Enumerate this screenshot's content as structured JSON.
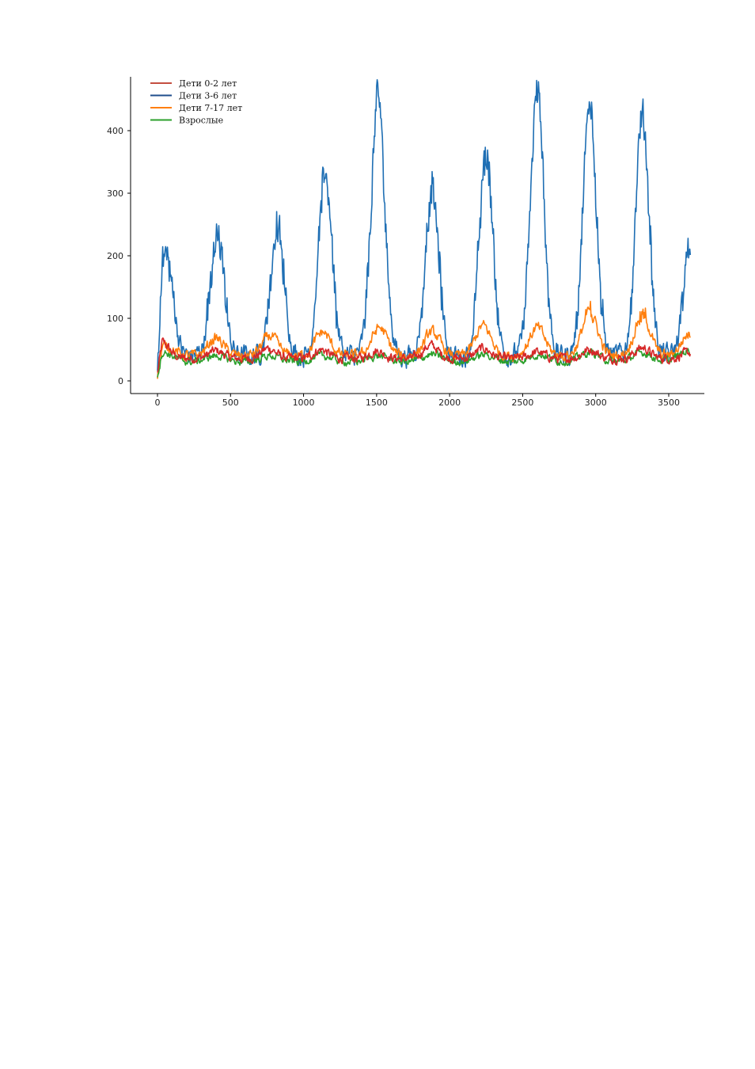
{
  "chart_data": {
    "type": "line",
    "title": "",
    "xlabel": "",
    "ylabel": "",
    "xlim": [
      -180,
      3760
    ],
    "ylim": [
      -20,
      485
    ],
    "xticks": [
      0,
      500,
      1000,
      1500,
      2000,
      2500,
      3000,
      3500
    ],
    "yticks": [
      0,
      100,
      200,
      300,
      400
    ],
    "grid": false,
    "legend_position": "top-left",
    "series": [
      {
        "name": "Дети 0-2 лет",
        "color": "#d62728",
        "legend_color": "#c44e40",
        "peaks": [
          [
            30,
            62
          ],
          [
            400,
            48
          ],
          [
            760,
            52
          ],
          [
            1120,
            50
          ],
          [
            1500,
            48
          ],
          [
            1870,
            57
          ],
          [
            2230,
            52
          ],
          [
            2600,
            46
          ],
          [
            2960,
            50
          ],
          [
            3320,
            53
          ],
          [
            3640,
            45
          ]
        ],
        "baseline": 36,
        "width": 70,
        "noise": 6
      },
      {
        "name": "Дети 3-6 лет",
        "color": "#1f6fb4",
        "legend_color": "#1f4e8c",
        "peaks": [
          [
            60,
            205
          ],
          [
            410,
            235
          ],
          [
            820,
            240
          ],
          [
            1150,
            330
          ],
          [
            1510,
            450
          ],
          [
            1880,
            300
          ],
          [
            2250,
            360
          ],
          [
            2600,
            460
          ],
          [
            2960,
            440
          ],
          [
            3320,
            415
          ],
          [
            3650,
            220
          ]
        ],
        "baseline": 40,
        "width": 65,
        "noise": 14
      },
      {
        "name": "Дети 7-17 лет",
        "color": "#ff7f0e",
        "legend_color": "#ff7f0e",
        "peaks": [
          [
            60,
            55
          ],
          [
            400,
            68
          ],
          [
            770,
            72
          ],
          [
            1130,
            78
          ],
          [
            1520,
            85
          ],
          [
            1880,
            78
          ],
          [
            2230,
            88
          ],
          [
            2600,
            85
          ],
          [
            2960,
            110
          ],
          [
            3320,
            105
          ],
          [
            3640,
            75
          ]
        ],
        "baseline": 40,
        "width": 75,
        "noise": 7
      },
      {
        "name": "Взрослые",
        "color": "#2ca02c",
        "legend_color": "#2ca02c",
        "peaks": [
          [
            40,
            45
          ],
          [
            400,
            40
          ],
          [
            770,
            40
          ],
          [
            1130,
            40
          ],
          [
            1510,
            40
          ],
          [
            1880,
            42
          ],
          [
            2240,
            42
          ],
          [
            2610,
            42
          ],
          [
            2960,
            45
          ],
          [
            3320,
            45
          ],
          [
            3640,
            48
          ]
        ],
        "baseline": 30,
        "width": 100,
        "noise": 5
      }
    ],
    "x_max": 3650
  }
}
